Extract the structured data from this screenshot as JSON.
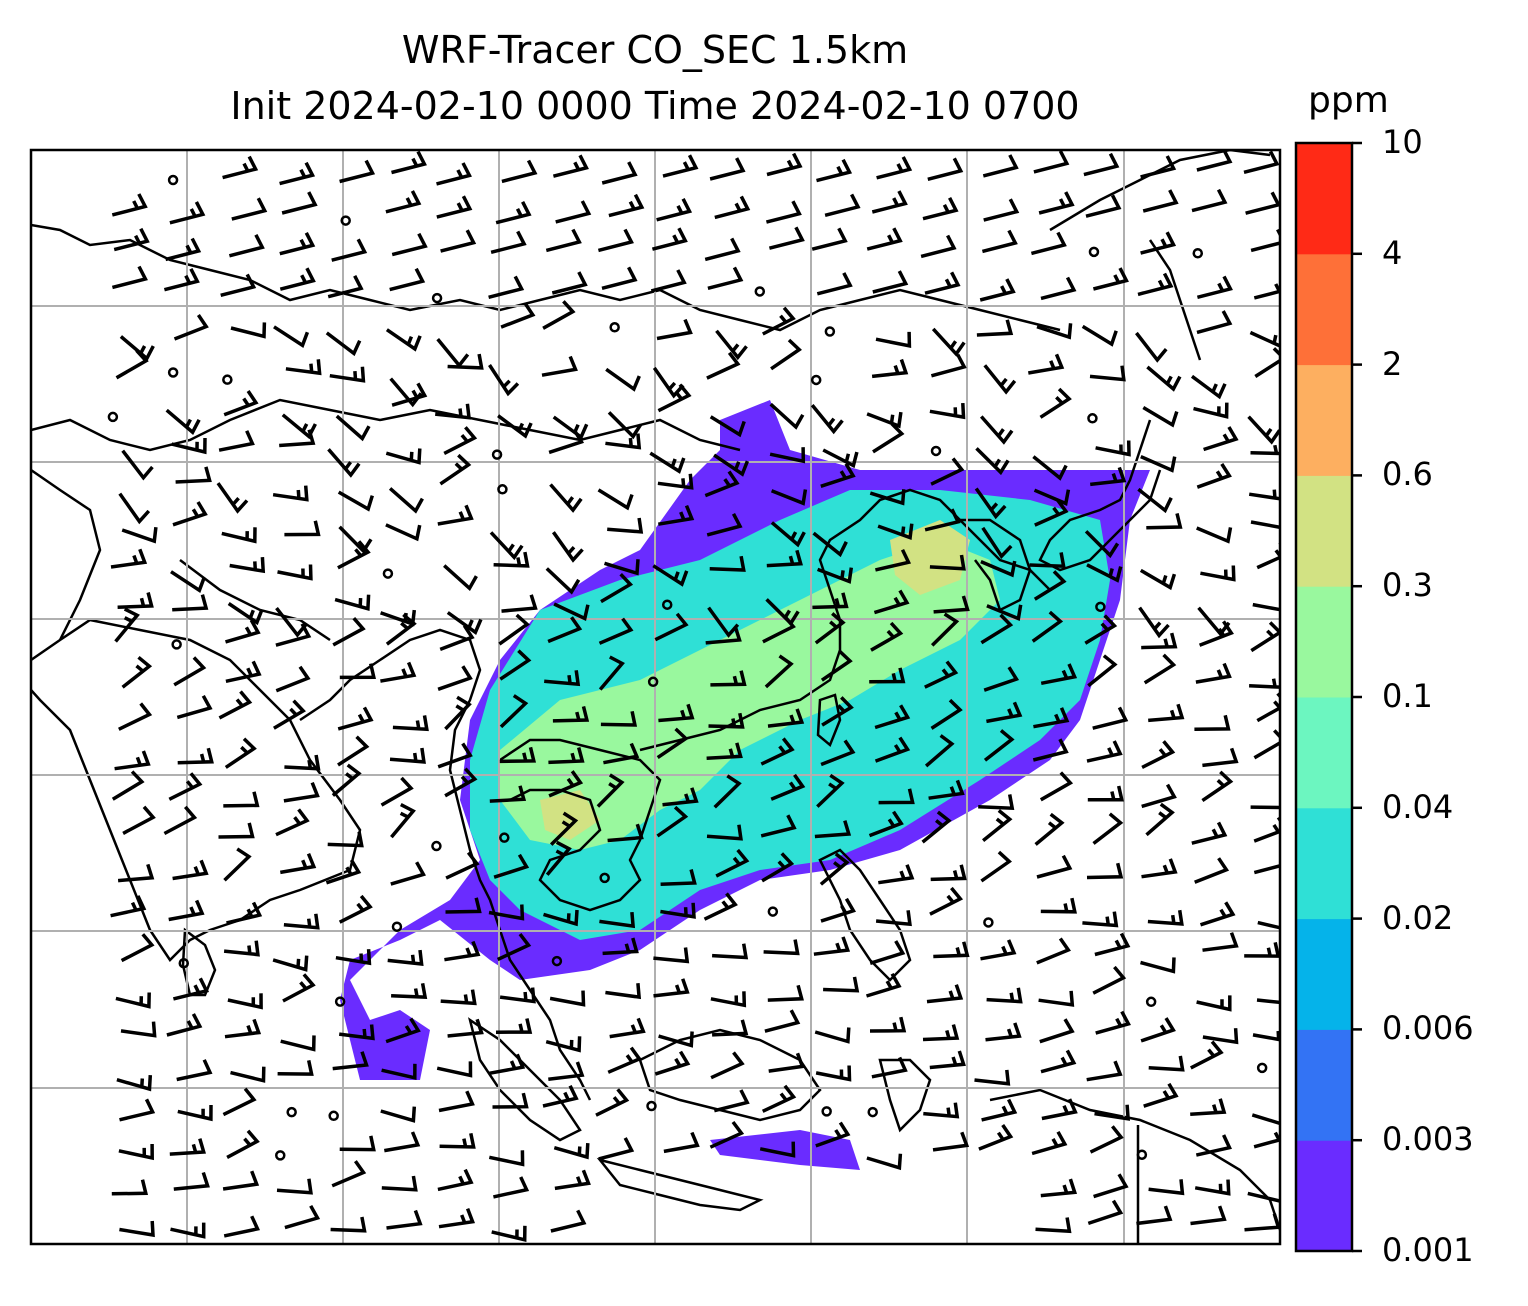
{
  "title": {
    "line1": "WRF-Tracer CO_SEC 1.5km",
    "line2": "Init 2024-02-10 0000 Time 2024-02-10 0700"
  },
  "colorbar": {
    "unit": "ppm",
    "ticks": [
      "10",
      "4",
      "2",
      "0.6",
      "0.3",
      "0.1",
      "0.04",
      "0.02",
      "0.006",
      "0.003",
      "0.001"
    ],
    "colors": [
      "#6a2cff",
      "#3373f4",
      "#05b3ea",
      "#2fe0d6",
      "#6cf6c0",
      "#99f89e",
      "#d2e283",
      "#fdaf60",
      "#fe7038",
      "#ff2a16"
    ]
  },
  "map": {
    "plume_colors": {
      "low": "#6a2cff",
      "mid": "#2fe0d6",
      "high": "#99f89e",
      "peak": "#d2e283"
    }
  }
}
